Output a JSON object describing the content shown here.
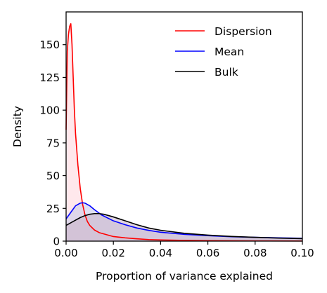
{
  "chart_data": {
    "type": "area",
    "xlabel": "Proportion of variance explained",
    "ylabel": "Density",
    "xlim": [
      0.0,
      0.1
    ],
    "ylim": [
      0,
      175
    ],
    "xticks": [
      "0.00",
      "0.02",
      "0.04",
      "0.06",
      "0.08",
      "0.10"
    ],
    "yticks": [
      "0",
      "25",
      "50",
      "75",
      "100",
      "125",
      "150"
    ],
    "grid": false,
    "legend_position": "top-right",
    "series": [
      {
        "name": "Dispersion",
        "color": "#ff0000",
        "fill": "#ffd6dc",
        "x": [
          0.0,
          0.0005,
          0.001,
          0.0015,
          0.002,
          0.0025,
          0.003,
          0.0035,
          0.004,
          0.005,
          0.006,
          0.007,
          0.008,
          0.009,
          0.01,
          0.012,
          0.014,
          0.016,
          0.018,
          0.02,
          0.025,
          0.03,
          0.035,
          0.04,
          0.05,
          0.06,
          0.08,
          0.1
        ],
        "y": [
          85,
          145,
          158,
          164,
          166,
          150,
          125,
          100,
          82,
          58,
          40,
          28,
          20,
          15,
          12,
          8.5,
          6.5,
          5.5,
          4.5,
          3.5,
          2.5,
          1.8,
          1.2,
          0.9,
          0.6,
          0.4,
          0.2,
          0.1
        ]
      },
      {
        "name": "Mean",
        "color": "#0000ff",
        "fill": "#c5c9ea",
        "x": [
          0.0,
          0.002,
          0.004,
          0.006,
          0.007,
          0.008,
          0.01,
          0.012,
          0.015,
          0.02,
          0.025,
          0.03,
          0.035,
          0.04,
          0.05,
          0.06,
          0.07,
          0.08,
          0.09,
          0.1
        ],
        "y": [
          17,
          22,
          27,
          29,
          29.3,
          29,
          27,
          24,
          20,
          15.5,
          12.5,
          10,
          8.2,
          6.8,
          5.2,
          4.2,
          3.4,
          2.9,
          2.5,
          2.2
        ]
      },
      {
        "name": "Bulk",
        "color": "#000000",
        "fill": "#c9b3c6",
        "x": [
          0.0,
          0.002,
          0.004,
          0.006,
          0.008,
          0.01,
          0.012,
          0.014,
          0.016,
          0.02,
          0.025,
          0.03,
          0.035,
          0.04,
          0.05,
          0.06,
          0.07,
          0.08,
          0.09,
          0.1
        ],
        "y": [
          12,
          14,
          16,
          18,
          19.5,
          20.5,
          21,
          21,
          20.5,
          18.5,
          15.5,
          12.5,
          10,
          8.3,
          6,
          4.6,
          3.6,
          2.9,
          2.3,
          1.9
        ]
      }
    ]
  }
}
